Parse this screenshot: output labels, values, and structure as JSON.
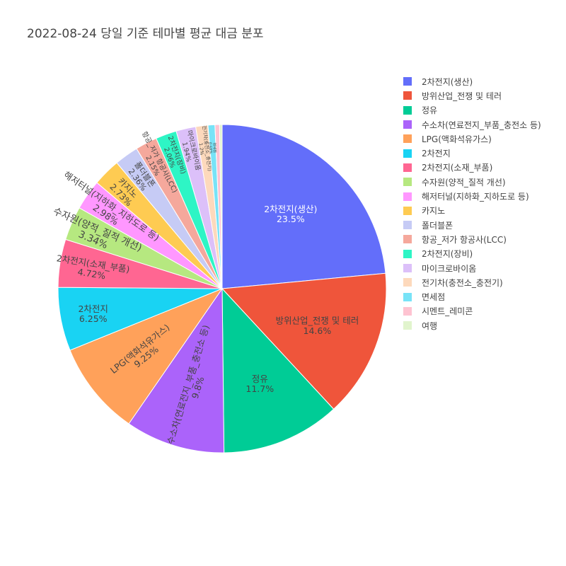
{
  "chart_data": {
    "type": "pie",
    "title": "2022-08-24 당일 기준 테마별 평균 대금 분포",
    "direction": "clockwise",
    "rotation_deg": 90,
    "slices": [
      {
        "label": "2차전지(생산)",
        "percent": 23.5,
        "percent_text": "23.5%",
        "color": "#636efa"
      },
      {
        "label": "방위산업_전쟁 및 테러",
        "percent": 14.6,
        "percent_text": "14.6%",
        "color": "#EF553B"
      },
      {
        "label": "정유",
        "percent": 11.7,
        "percent_text": "11.7%",
        "color": "#00cc96"
      },
      {
        "label": "수소차(연료전지_부품_충전소 등)",
        "percent": 9.8,
        "percent_text": "9.8%",
        "color": "#ab63fa"
      },
      {
        "label": "LPG(액화석유가스)",
        "percent": 9.25,
        "percent_text": "9.25%",
        "color": "#FFA15A"
      },
      {
        "label": "2차전지",
        "percent": 6.25,
        "percent_text": "6.25%",
        "color": "#19d3f3"
      },
      {
        "label": "2차전지(소재_부품)",
        "percent": 4.72,
        "percent_text": "4.72%",
        "color": "#FF6692"
      },
      {
        "label": "수자원(양적_질적 개선)",
        "percent": 3.34,
        "percent_text": "3.34%",
        "color": "#B6E880"
      },
      {
        "label": "해저터널(지하화_지하도로 등)",
        "percent": 2.98,
        "percent_text": "2.98%",
        "color": "#FF97FF"
      },
      {
        "label": "카지노",
        "percent": 2.73,
        "percent_text": "2.73%",
        "color": "#FECB52"
      },
      {
        "label": "폴더블폰",
        "percent": 2.36,
        "percent_text": "2.36%",
        "color": "#c6cbf5"
      },
      {
        "label": "항공_저가 항공사(LCC)",
        "percent": 2.15,
        "percent_text": "2.15%",
        "color": "#f5a89c"
      },
      {
        "label": "2차전지(장비)",
        "percent": 2.06,
        "percent_text": "2.06%",
        "color": "#2ef5c5"
      },
      {
        "label": "마이크로바이옴",
        "percent": 1.94,
        "percent_text": "1.94%",
        "color": "#dcc0f9"
      },
      {
        "label": "전기차(충전소_충전기)",
        "percent": 1.2,
        "percent_text": "1.2%",
        "color": "#fdd9bc"
      },
      {
        "label": "면세점",
        "percent": 0.68,
        "percent_text": "0.68%",
        "color": "#78e3f7"
      },
      {
        "label": "시멘트_레미콘",
        "percent": 0.45,
        "percent_text": "",
        "color": "#fec3d1"
      },
      {
        "label": "여행",
        "percent": 0.25,
        "percent_text": "",
        "color": "#e1f4cd"
      }
    ]
  }
}
